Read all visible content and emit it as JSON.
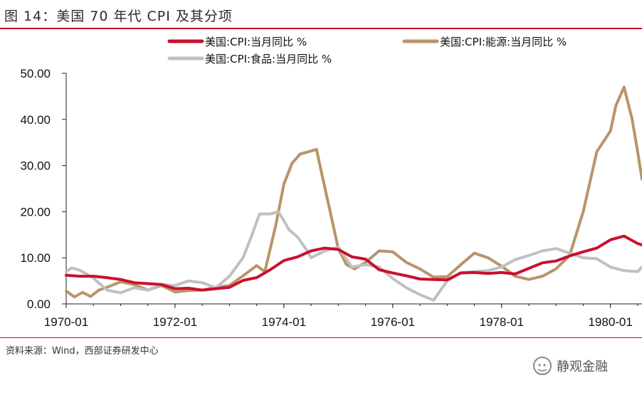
{
  "title": "图 14：美国 70 年代 CPI 及其分项",
  "source": "资料来源：Wind，西部证券研发中心",
  "watermark": "静观金融",
  "chart_data": {
    "type": "line",
    "ylim": [
      0,
      50
    ],
    "yticks": [
      "0.00",
      "10.00",
      "20.00",
      "30.00",
      "40.00",
      "50.00"
    ],
    "xlim": [
      1970.0,
      1980.58
    ],
    "xticks": [
      {
        "x": 1970.0,
        "label": "1970-01"
      },
      {
        "x": 1972.0,
        "label": "1972-01"
      },
      {
        "x": 1974.0,
        "label": "1974-01"
      },
      {
        "x": 1976.0,
        "label": "1976-01"
      },
      {
        "x": 1978.0,
        "label": "1978-01"
      },
      {
        "x": 1980.0,
        "label": "1980-01"
      }
    ],
    "series": [
      {
        "name": "美国:CPI:当月同比 %",
        "color": "#c8102e",
        "points": [
          [
            1970.0,
            6.2
          ],
          [
            1970.25,
            6.0
          ],
          [
            1970.5,
            6.0
          ],
          [
            1970.75,
            5.7
          ],
          [
            1971.0,
            5.3
          ],
          [
            1971.25,
            4.6
          ],
          [
            1971.5,
            4.4
          ],
          [
            1971.75,
            4.2
          ],
          [
            1972.0,
            3.3
          ],
          [
            1972.25,
            3.4
          ],
          [
            1972.5,
            3.0
          ],
          [
            1972.75,
            3.3
          ],
          [
            1973.0,
            3.6
          ],
          [
            1973.25,
            5.1
          ],
          [
            1973.5,
            5.7
          ],
          [
            1973.75,
            7.4
          ],
          [
            1974.0,
            9.4
          ],
          [
            1974.25,
            10.2
          ],
          [
            1974.5,
            11.5
          ],
          [
            1974.75,
            12.1
          ],
          [
            1975.0,
            11.8
          ],
          [
            1975.25,
            10.2
          ],
          [
            1975.5,
            9.7
          ],
          [
            1975.75,
            7.4
          ],
          [
            1976.0,
            6.7
          ],
          [
            1976.25,
            6.1
          ],
          [
            1976.5,
            5.4
          ],
          [
            1976.75,
            5.3
          ],
          [
            1977.0,
            5.2
          ],
          [
            1977.25,
            6.7
          ],
          [
            1977.5,
            6.8
          ],
          [
            1977.75,
            6.6
          ],
          [
            1978.0,
            6.8
          ],
          [
            1978.25,
            6.5
          ],
          [
            1978.5,
            7.7
          ],
          [
            1978.75,
            8.9
          ],
          [
            1979.0,
            9.3
          ],
          [
            1979.25,
            10.4
          ],
          [
            1979.5,
            11.3
          ],
          [
            1979.75,
            12.1
          ],
          [
            1980.0,
            13.9
          ],
          [
            1980.25,
            14.7
          ],
          [
            1980.5,
            13.1
          ],
          [
            1980.58,
            12.8
          ]
        ]
      },
      {
        "name": "美国:CPI:能源:当月同比 %",
        "color": "#b8946a",
        "points": [
          [
            1970.0,
            2.8
          ],
          [
            1970.15,
            1.5
          ],
          [
            1970.3,
            2.5
          ],
          [
            1970.45,
            1.6
          ],
          [
            1970.6,
            3.0
          ],
          [
            1970.75,
            3.6
          ],
          [
            1971.0,
            4.8
          ],
          [
            1971.25,
            4.2
          ],
          [
            1971.5,
            3.0
          ],
          [
            1971.75,
            4.0
          ],
          [
            1972.0,
            2.6
          ],
          [
            1972.25,
            2.9
          ],
          [
            1972.5,
            3.0
          ],
          [
            1972.75,
            3.6
          ],
          [
            1973.0,
            4.0
          ],
          [
            1973.25,
            6.1
          ],
          [
            1973.5,
            8.3
          ],
          [
            1973.65,
            7.0
          ],
          [
            1973.85,
            17.0
          ],
          [
            1974.0,
            26.0
          ],
          [
            1974.15,
            30.5
          ],
          [
            1974.3,
            32.5
          ],
          [
            1974.45,
            33.0
          ],
          [
            1974.6,
            33.5
          ],
          [
            1974.7,
            28.0
          ],
          [
            1974.85,
            20.0
          ],
          [
            1975.0,
            12.0
          ],
          [
            1975.15,
            8.5
          ],
          [
            1975.3,
            7.6
          ],
          [
            1975.5,
            9.0
          ],
          [
            1975.75,
            11.5
          ],
          [
            1976.0,
            11.3
          ],
          [
            1976.25,
            9.0
          ],
          [
            1976.5,
            7.6
          ],
          [
            1976.75,
            5.8
          ],
          [
            1977.0,
            5.9
          ],
          [
            1977.25,
            8.5
          ],
          [
            1977.5,
            11.0
          ],
          [
            1977.75,
            10.0
          ],
          [
            1978.0,
            8.2
          ],
          [
            1978.25,
            6.0
          ],
          [
            1978.5,
            5.3
          ],
          [
            1978.75,
            6.0
          ],
          [
            1979.0,
            7.6
          ],
          [
            1979.25,
            10.5
          ],
          [
            1979.5,
            20.0
          ],
          [
            1979.75,
            33.0
          ],
          [
            1980.0,
            37.5
          ],
          [
            1980.1,
            43.0
          ],
          [
            1980.25,
            47.0
          ],
          [
            1980.4,
            40.0
          ],
          [
            1980.5,
            33.0
          ],
          [
            1980.58,
            27.0
          ]
        ]
      },
      {
        "name": "美国:CPI:食品:当月同比 %",
        "color": "#c0c0c0",
        "points": [
          [
            1970.0,
            7.0
          ],
          [
            1970.1,
            7.8
          ],
          [
            1970.25,
            7.3
          ],
          [
            1970.4,
            6.3
          ],
          [
            1970.5,
            5.6
          ],
          [
            1970.75,
            3.0
          ],
          [
            1971.0,
            2.4
          ],
          [
            1971.25,
            3.5
          ],
          [
            1971.5,
            3.0
          ],
          [
            1971.75,
            4.2
          ],
          [
            1972.0,
            4.0
          ],
          [
            1972.25,
            5.0
          ],
          [
            1972.5,
            4.6
          ],
          [
            1972.75,
            3.5
          ],
          [
            1973.0,
            6.0
          ],
          [
            1973.25,
            10.0
          ],
          [
            1973.4,
            14.5
          ],
          [
            1973.55,
            19.5
          ],
          [
            1973.75,
            19.5
          ],
          [
            1973.9,
            20.0
          ],
          [
            1974.1,
            16.0
          ],
          [
            1974.25,
            14.5
          ],
          [
            1974.4,
            12.0
          ],
          [
            1974.5,
            10.0
          ],
          [
            1974.75,
            11.5
          ],
          [
            1975.0,
            12.3
          ],
          [
            1975.25,
            8.0
          ],
          [
            1975.5,
            8.5
          ],
          [
            1975.75,
            8.0
          ],
          [
            1976.0,
            5.5
          ],
          [
            1976.25,
            3.5
          ],
          [
            1976.5,
            2.0
          ],
          [
            1976.75,
            0.8
          ],
          [
            1977.0,
            5.0
          ],
          [
            1977.25,
            6.8
          ],
          [
            1977.5,
            7.0
          ],
          [
            1977.75,
            7.2
          ],
          [
            1978.0,
            8.0
          ],
          [
            1978.25,
            9.6
          ],
          [
            1978.5,
            10.5
          ],
          [
            1978.75,
            11.5
          ],
          [
            1979.0,
            12.0
          ],
          [
            1979.25,
            11.0
          ],
          [
            1979.5,
            10.0
          ],
          [
            1979.75,
            9.8
          ],
          [
            1980.0,
            8.0
          ],
          [
            1980.25,
            7.2
          ],
          [
            1980.5,
            7.0
          ],
          [
            1980.58,
            8.0
          ]
        ]
      }
    ]
  }
}
